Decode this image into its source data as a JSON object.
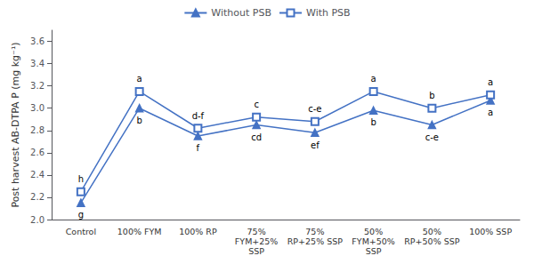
{
  "chart_data": {
    "type": "line",
    "categories": [
      "Control",
      "100% FYM",
      "100% RP",
      "75%\nFYM+25%\nSSP",
      "75%\nRP+25% SSP",
      "50%\nFYM+50%\nSSP",
      "50%\nRP+50% SSP",
      "100% SSP"
    ],
    "series": [
      {
        "name": "Without PSB",
        "color": "#4472C4",
        "marker": "triangle",
        "values": [
          2.15,
          3.0,
          2.75,
          2.85,
          2.78,
          2.98,
          2.85,
          3.07
        ],
        "annotations": [
          "g",
          "b",
          "f",
          "cd",
          "ef",
          "b",
          "c-e",
          "a"
        ]
      },
      {
        "name": "With PSB",
        "color": "#4472C4",
        "marker": "square",
        "values": [
          2.25,
          3.15,
          2.82,
          2.92,
          2.88,
          3.15,
          3.0,
          3.12
        ],
        "annotations": [
          "h",
          "a",
          "d-f",
          "c",
          "c-e",
          "a",
          "b",
          "a"
        ]
      }
    ],
    "ylabel": "Post harvest AB-DTPA P (mg kg⁻¹)",
    "ylim": [
      2.0,
      3.7
    ],
    "yticks": [
      {
        "value": 2.0,
        "label": "2.0"
      },
      {
        "value": 2.2,
        "label": "2.2"
      },
      {
        "value": 2.4,
        "label": "2.4"
      },
      {
        "value": 2.6,
        "label": "2.6"
      },
      {
        "value": 2.8,
        "label": "2.8"
      },
      {
        "value": 3.0,
        "label": "3.0"
      },
      {
        "value": 3.2,
        "label": "3.2"
      },
      {
        "value": 3.4,
        "label": "3.4"
      },
      {
        "value": 3.6,
        "label": "3.6"
      }
    ],
    "grid": false,
    "legend": "top"
  }
}
